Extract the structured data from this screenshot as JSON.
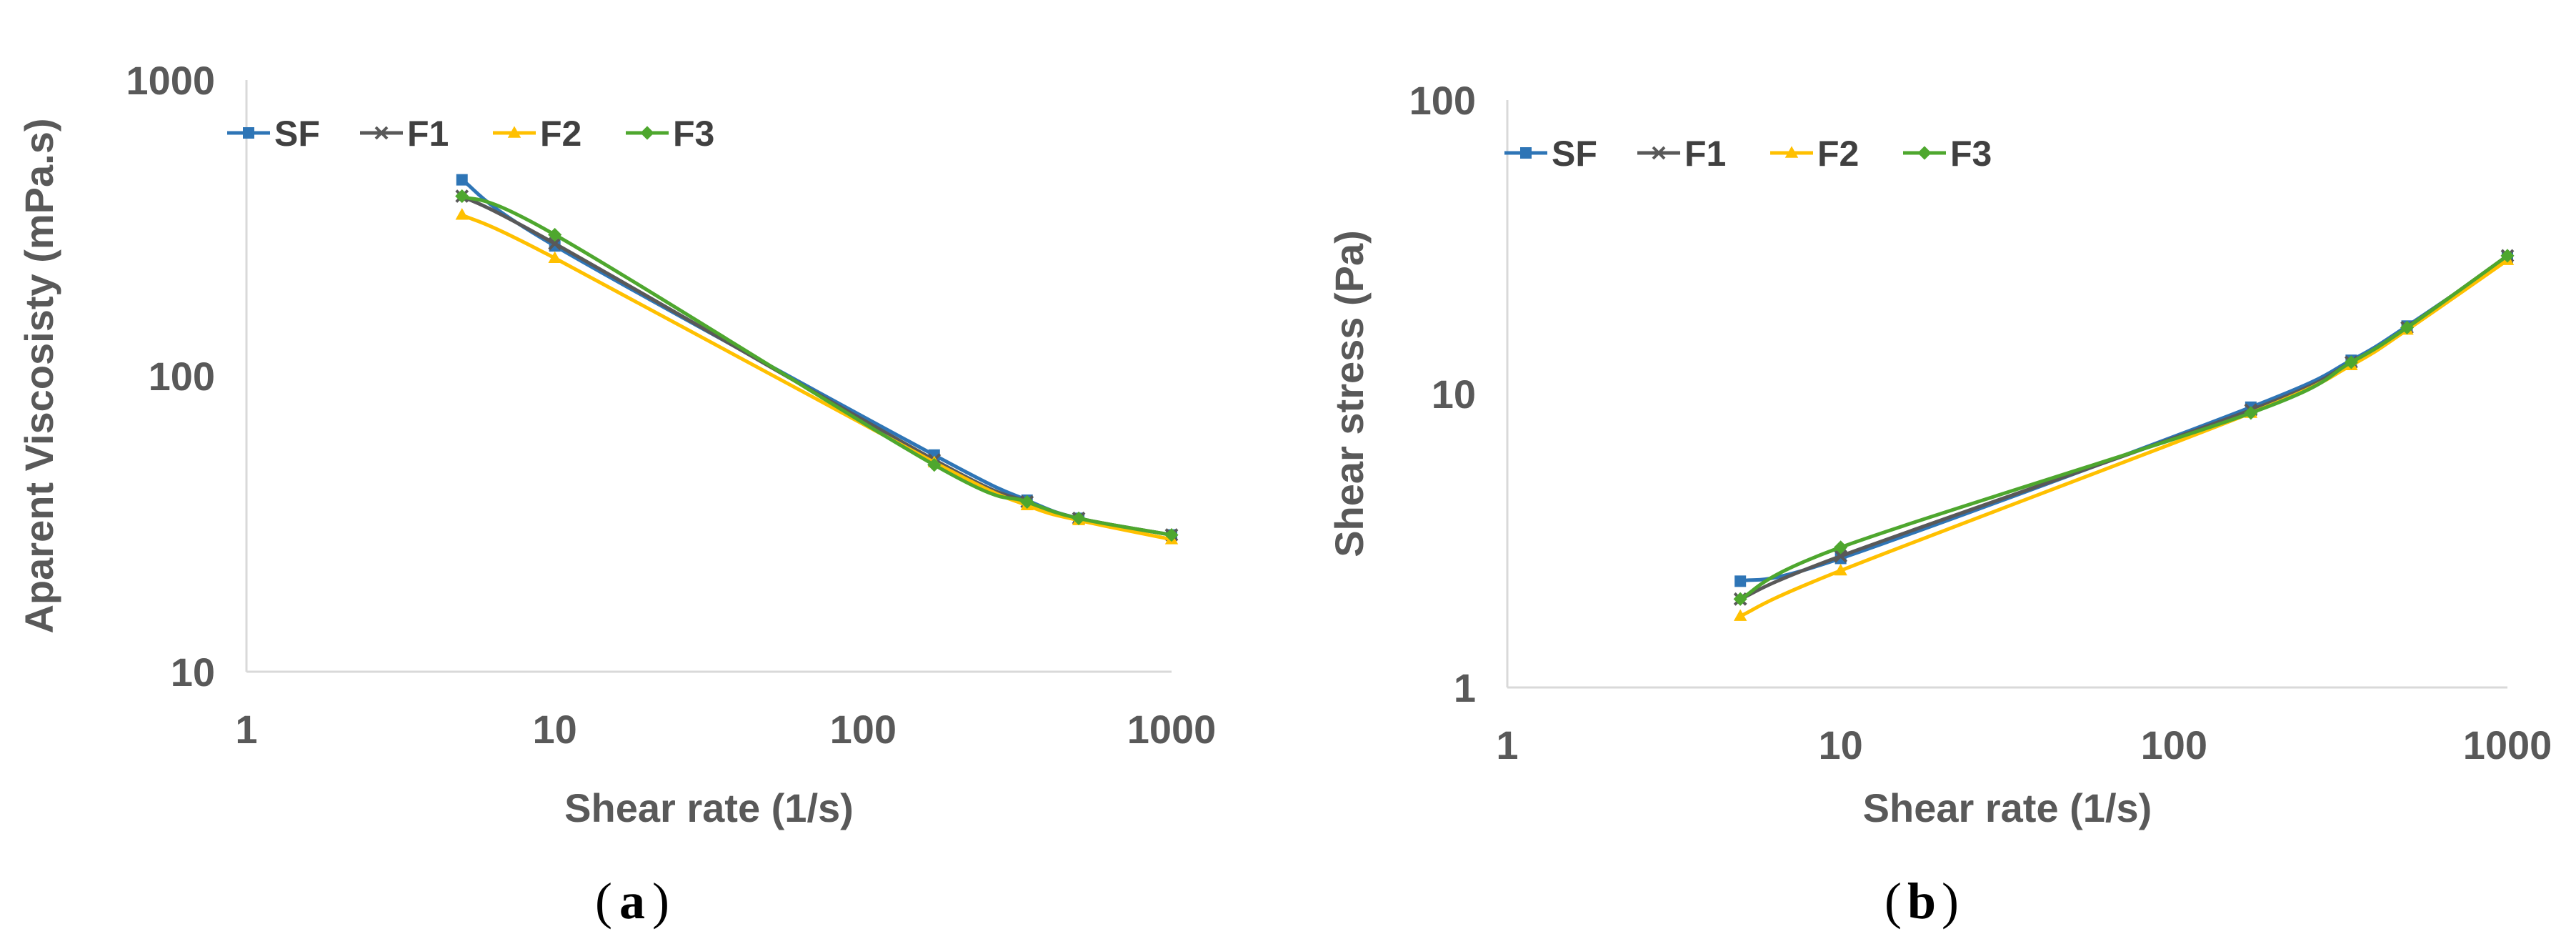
{
  "chart_data": [
    {
      "type": "line",
      "caption_open": "(",
      "caption_letter": "a",
      "caption_close": ")",
      "xlabel": "Shear rate (1/s)",
      "ylabel": "Aparent Viscosisty  (mPa.s)",
      "xscale": "log",
      "yscale": "log",
      "xlim": [
        1,
        1000
      ],
      "ylim": [
        10,
        1000
      ],
      "xticks": [
        1,
        10,
        100,
        1000
      ],
      "yticks": [
        10,
        100,
        1000
      ],
      "xtick_labels": [
        "1",
        "10",
        "100",
        "1000"
      ],
      "ytick_labels": [
        "10",
        "100",
        "1000"
      ],
      "grid": false,
      "legend_position": "top-left",
      "x": [
        5,
        10,
        170,
        340,
        500,
        1000
      ],
      "series": [
        {
          "name": "SF",
          "color": "#2E75B6",
          "marker": "square",
          "values": [
            460,
            275,
            54,
            38,
            33,
            29
          ]
        },
        {
          "name": "F1",
          "color": "#595959",
          "marker": "x",
          "values": [
            405,
            280,
            52,
            37.5,
            33,
            29
          ]
        },
        {
          "name": "F2",
          "color": "#FFC000",
          "marker": "triangle",
          "values": [
            350,
            250,
            51,
            36.5,
            32.5,
            28
          ]
        },
        {
          "name": "F3",
          "color": "#4EA72E",
          "marker": "diamond",
          "values": [
            405,
            300,
            50,
            37.5,
            33,
            29
          ]
        }
      ]
    },
    {
      "type": "line",
      "caption_open": "(",
      "caption_letter": "b",
      "caption_close": ")",
      "xlabel": "Shear rate (1/s)",
      "ylabel": "Shear stress (Pa)",
      "xscale": "log",
      "yscale": "log",
      "xlim": [
        1,
        1000
      ],
      "ylim": [
        1,
        100
      ],
      "xticks": [
        1,
        10,
        100,
        1000
      ],
      "yticks": [
        1,
        10,
        100
      ],
      "xtick_labels": [
        "1",
        "10",
        "100",
        "1000"
      ],
      "ytick_labels": [
        "1",
        "10",
        "100"
      ],
      "grid": false,
      "legend_position": "top-left",
      "x": [
        5,
        10,
        170,
        340,
        500,
        1000
      ],
      "series": [
        {
          "name": "SF",
          "color": "#2E75B6",
          "marker": "square",
          "values": [
            2.3,
            2.75,
            9.0,
            13.0,
            17.0,
            29.0
          ]
        },
        {
          "name": "F1",
          "color": "#595959",
          "marker": "x",
          "values": [
            2.0,
            2.8,
            8.8,
            12.8,
            16.8,
            29.5
          ]
        },
        {
          "name": "F2",
          "color": "#FFC000",
          "marker": "triangle",
          "values": [
            1.75,
            2.5,
            8.6,
            12.5,
            16.5,
            28.5
          ]
        },
        {
          "name": "F3",
          "color": "#4EA72E",
          "marker": "diamond",
          "values": [
            2.0,
            3.0,
            8.6,
            12.8,
            16.8,
            29.5
          ]
        }
      ]
    }
  ]
}
